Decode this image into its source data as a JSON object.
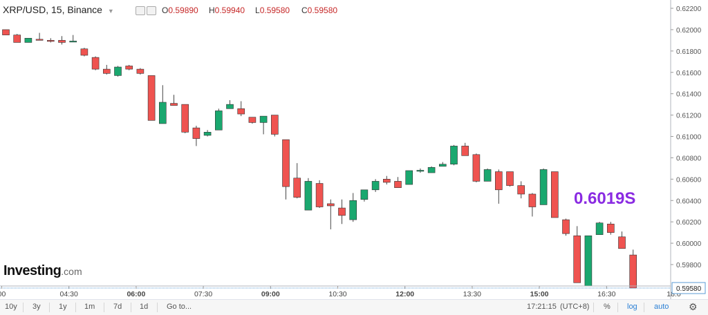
{
  "header": {
    "title": "XRP/USD, 15, Binance",
    "dropdown_icon": "caret-down-icon",
    "ohlc": [
      {
        "key": "O",
        "value": "0.59890"
      },
      {
        "key": "H",
        "value": "0.59940"
      },
      {
        "key": "L",
        "value": "0.59580"
      },
      {
        "key": "C",
        "value": "0.59580"
      }
    ]
  },
  "overlay_price": "0.6019S",
  "logo": {
    "main": "Investing",
    "suffix": ".com"
  },
  "colors": {
    "up": "#1aa86f",
    "down": "#ef5350",
    "overlay": "#8a2be2",
    "last_price_line": "#5b9bd5"
  },
  "bottom_bar": {
    "ranges": [
      "10y",
      "3y",
      "1y",
      "1m",
      "7d",
      "1d"
    ],
    "goto": "Go to...",
    "time": "17:21:15",
    "timezone": "(UTC+8)",
    "percent": "%",
    "log": "log",
    "auto": "auto",
    "settings_icon": "gear-icon"
  },
  "chart_data": {
    "type": "candlestick",
    "title": "XRP/USD, 15, Binance",
    "x_tick_labels": [
      "00",
      "04:30",
      "06:00",
      "07:30",
      "09:00",
      "10:30",
      "12:00",
      "13:30",
      "15:00",
      "16:30",
      "18:0"
    ],
    "x_ticks_bold": [
      false,
      false,
      true,
      false,
      true,
      false,
      true,
      false,
      true,
      false,
      false
    ],
    "x_tick_index": [
      0,
      6,
      12,
      18,
      24,
      30,
      36,
      42,
      48,
      54,
      60
    ],
    "y_ticks": [
      0.598,
      0.6,
      0.602,
      0.604,
      0.606,
      0.608,
      0.61,
      0.612,
      0.614,
      0.616,
      0.618,
      0.62,
      0.622
    ],
    "y_tick_labels": [
      "0.59800",
      "0.60000",
      "0.60200",
      "0.60400",
      "0.60600",
      "0.60800",
      "0.61000",
      "0.61200",
      "0.61400",
      "0.61600",
      "0.61800",
      "0.62000",
      "0.62200"
    ],
    "ylim": [
      0.5954,
      0.6228
    ],
    "last_price": 0.5958,
    "last_price_label": "0.59580",
    "grid": false,
    "candles": [
      {
        "o": 0.62,
        "h": 0.62,
        "l": 0.6195,
        "c": 0.6195
      },
      {
        "o": 0.6195,
        "h": 0.6196,
        "l": 0.6188,
        "c": 0.6188
      },
      {
        "o": 0.6188,
        "h": 0.6192,
        "l": 0.6188,
        "c": 0.6192
      },
      {
        "o": 0.6191,
        "h": 0.6197,
        "l": 0.619,
        "c": 0.619
      },
      {
        "o": 0.619,
        "h": 0.6192,
        "l": 0.6188,
        "c": 0.6189
      },
      {
        "o": 0.619,
        "h": 0.6194,
        "l": 0.6186,
        "c": 0.6188
      },
      {
        "o": 0.6189,
        "h": 0.6195,
        "l": 0.6189,
        "c": 0.6189
      },
      {
        "o": 0.6182,
        "h": 0.6183,
        "l": 0.6175,
        "c": 0.6176
      },
      {
        "o": 0.6174,
        "h": 0.6175,
        "l": 0.6162,
        "c": 0.6163
      },
      {
        "o": 0.6163,
        "h": 0.6167,
        "l": 0.6158,
        "c": 0.6159
      },
      {
        "o": 0.6157,
        "h": 0.6166,
        "l": 0.6156,
        "c": 0.6165
      },
      {
        "o": 0.6166,
        "h": 0.6167,
        "l": 0.6162,
        "c": 0.6163
      },
      {
        "o": 0.6163,
        "h": 0.6164,
        "l": 0.6158,
        "c": 0.6159
      },
      {
        "o": 0.6157,
        "h": 0.6157,
        "l": 0.6115,
        "c": 0.6115
      },
      {
        "o": 0.6112,
        "h": 0.6148,
        "l": 0.6112,
        "c": 0.6132
      },
      {
        "o": 0.6131,
        "h": 0.6139,
        "l": 0.6129,
        "c": 0.6129
      },
      {
        "o": 0.613,
        "h": 0.613,
        "l": 0.6103,
        "c": 0.6104
      },
      {
        "o": 0.6108,
        "h": 0.611,
        "l": 0.6091,
        "c": 0.6098
      },
      {
        "o": 0.6101,
        "h": 0.6106,
        "l": 0.61,
        "c": 0.6104
      },
      {
        "o": 0.6106,
        "h": 0.6126,
        "l": 0.6106,
        "c": 0.6124
      },
      {
        "o": 0.6126,
        "h": 0.6134,
        "l": 0.6126,
        "c": 0.613
      },
      {
        "o": 0.6126,
        "h": 0.6133,
        "l": 0.6119,
        "c": 0.6121
      },
      {
        "o": 0.6118,
        "h": 0.6118,
        "l": 0.6112,
        "c": 0.6113
      },
      {
        "o": 0.6113,
        "h": 0.6119,
        "l": 0.6102,
        "c": 0.6119
      },
      {
        "o": 0.612,
        "h": 0.612,
        "l": 0.61,
        "c": 0.6102
      },
      {
        "o": 0.6097,
        "h": 0.6097,
        "l": 0.6041,
        "c": 0.6053
      },
      {
        "o": 0.6061,
        "h": 0.6075,
        "l": 0.6042,
        "c": 0.6043
      },
      {
        "o": 0.6031,
        "h": 0.6061,
        "l": 0.6031,
        "c": 0.6058
      },
      {
        "o": 0.6056,
        "h": 0.6059,
        "l": 0.6033,
        "c": 0.6034
      },
      {
        "o": 0.6037,
        "h": 0.6041,
        "l": 0.6013,
        "c": 0.6035
      },
      {
        "o": 0.6033,
        "h": 0.6041,
        "l": 0.6018,
        "c": 0.6026
      },
      {
        "o": 0.6022,
        "h": 0.6047,
        "l": 0.602,
        "c": 0.604
      },
      {
        "o": 0.6041,
        "h": 0.605,
        "l": 0.6039,
        "c": 0.605
      },
      {
        "o": 0.605,
        "h": 0.606,
        "l": 0.6048,
        "c": 0.6058
      },
      {
        "o": 0.606,
        "h": 0.6063,
        "l": 0.6055,
        "c": 0.6057
      },
      {
        "o": 0.6058,
        "h": 0.6062,
        "l": 0.6052,
        "c": 0.6052
      },
      {
        "o": 0.6055,
        "h": 0.6068,
        "l": 0.6055,
        "c": 0.6068
      },
      {
        "o": 0.6068,
        "h": 0.607,
        "l": 0.6066,
        "c": 0.6068
      },
      {
        "o": 0.6066,
        "h": 0.6072,
        "l": 0.6066,
        "c": 0.6071
      },
      {
        "o": 0.6072,
        "h": 0.6076,
        "l": 0.6072,
        "c": 0.6074
      },
      {
        "o": 0.6074,
        "h": 0.6092,
        "l": 0.6073,
        "c": 0.6091
      },
      {
        "o": 0.6091,
        "h": 0.6094,
        "l": 0.6082,
        "c": 0.6082
      },
      {
        "o": 0.6083,
        "h": 0.6084,
        "l": 0.6057,
        "c": 0.6058
      },
      {
        "o": 0.6058,
        "h": 0.607,
        "l": 0.6058,
        "c": 0.6069
      },
      {
        "o": 0.6067,
        "h": 0.6069,
        "l": 0.6037,
        "c": 0.605
      },
      {
        "o": 0.6067,
        "h": 0.6067,
        "l": 0.6053,
        "c": 0.6054
      },
      {
        "o": 0.6054,
        "h": 0.6058,
        "l": 0.6042,
        "c": 0.6046
      },
      {
        "o": 0.6046,
        "h": 0.6047,
        "l": 0.6025,
        "c": 0.6034
      },
      {
        "o": 0.6036,
        "h": 0.607,
        "l": 0.6036,
        "c": 0.6069
      },
      {
        "o": 0.6067,
        "h": 0.6067,
        "l": 0.6024,
        "c": 0.6024
      },
      {
        "o": 0.6022,
        "h": 0.6023,
        "l": 0.6007,
        "c": 0.6009
      },
      {
        "o": 0.6007,
        "h": 0.6016,
        "l": 0.5963,
        "c": 0.5963
      },
      {
        "o": 0.596,
        "h": 0.6007,
        "l": 0.596,
        "c": 0.6007
      },
      {
        "o": 0.6008,
        "h": 0.602,
        "l": 0.6008,
        "c": 0.6019
      },
      {
        "o": 0.6018,
        "h": 0.602,
        "l": 0.6008,
        "c": 0.601
      },
      {
        "o": 0.6006,
        "h": 0.6011,
        "l": 0.5995,
        "c": 0.5995
      },
      {
        "o": 0.5989,
        "h": 0.5994,
        "l": 0.5958,
        "c": 0.5958
      }
    ]
  }
}
